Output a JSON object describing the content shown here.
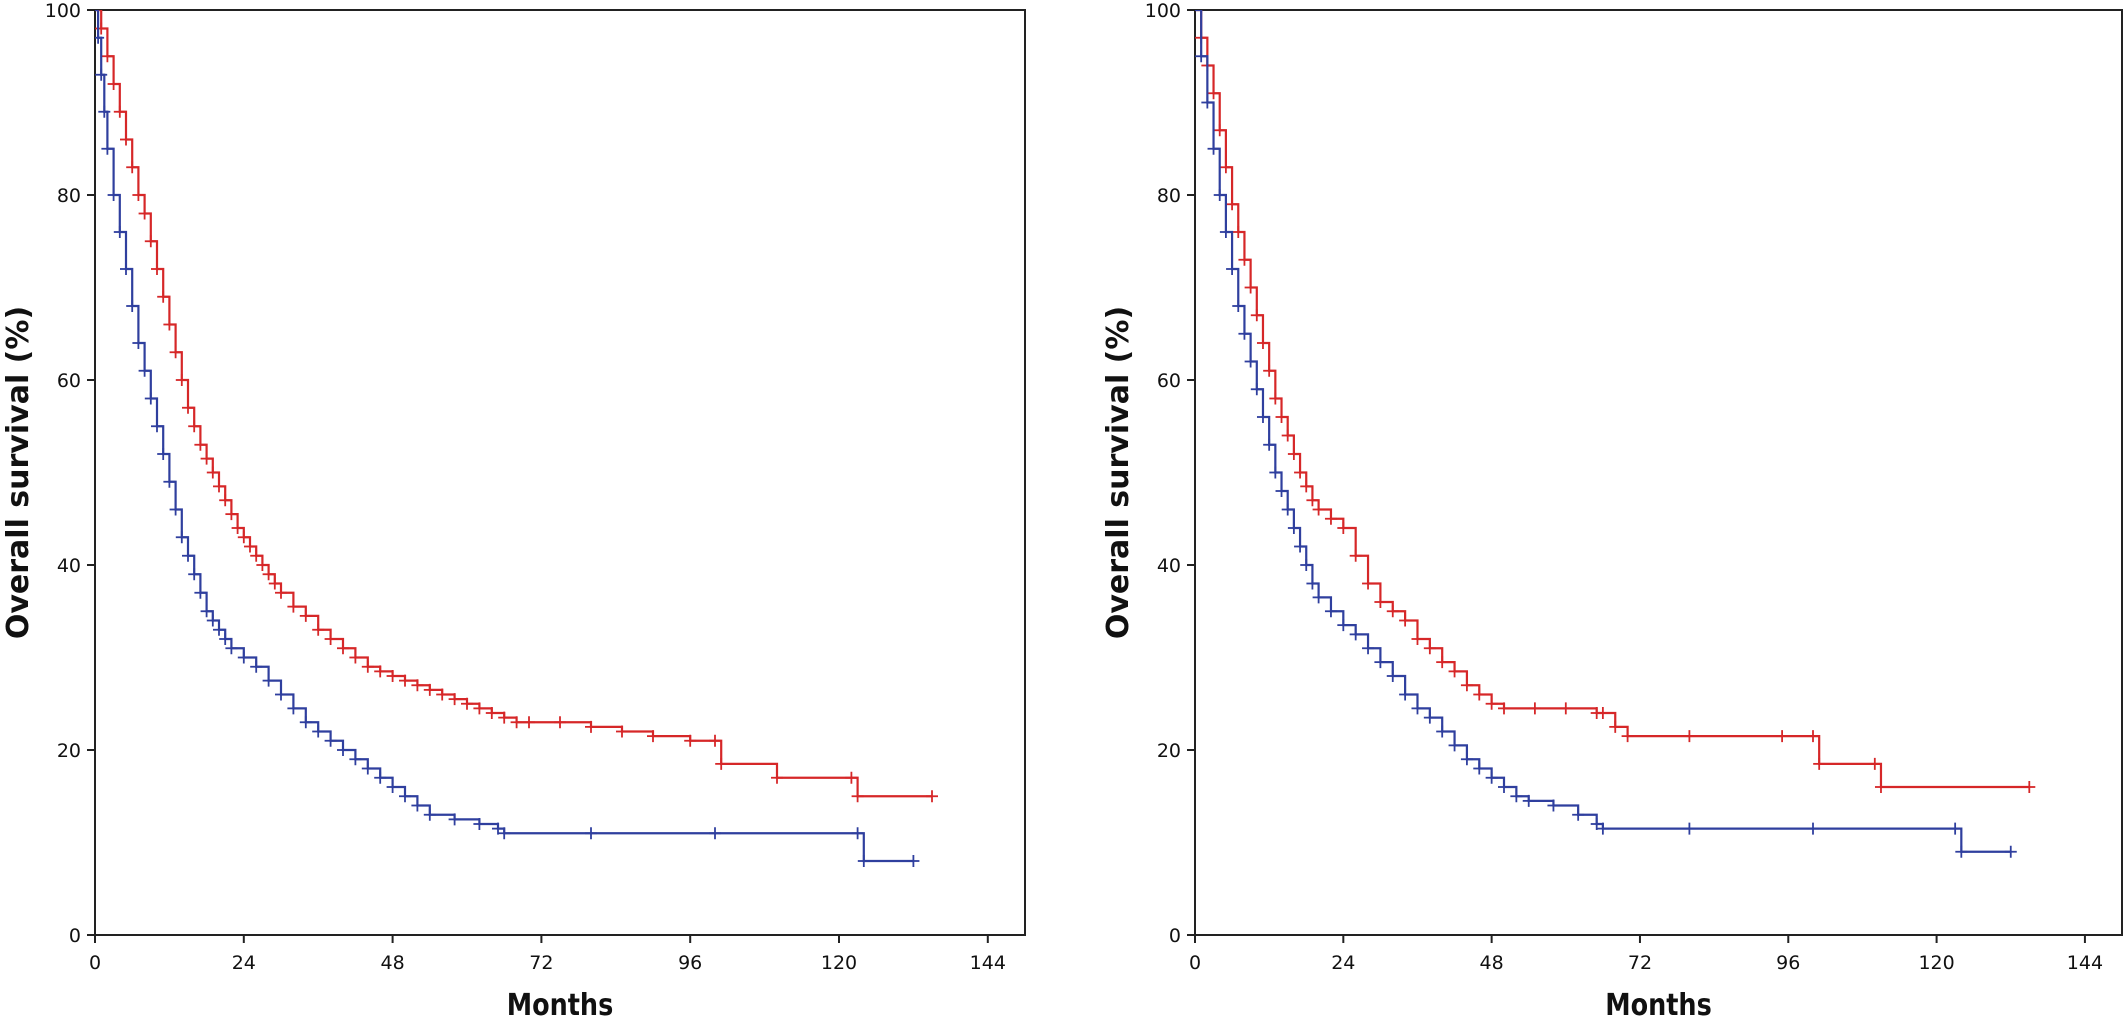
{
  "chart_data": [
    {
      "type": "line",
      "xlabel": "Months",
      "ylabel": "Overall survival (%)",
      "xlim": [
        0,
        150
      ],
      "ylim": [
        0,
        100
      ],
      "xticks": [
        0,
        24,
        48,
        72,
        96,
        120,
        144
      ],
      "yticks": [
        0,
        20,
        40,
        60,
        80,
        100
      ],
      "grid": false,
      "series": [
        {
          "color": "#d62728",
          "x": [
            0,
            1,
            2,
            3,
            4,
            5,
            6,
            7,
            8,
            9,
            10,
            11,
            12,
            13,
            14,
            15,
            16,
            17,
            18,
            19,
            20,
            21,
            22,
            23,
            24,
            25,
            26,
            27,
            28,
            29,
            30,
            32,
            34,
            36,
            38,
            40,
            42,
            44,
            46,
            48,
            50,
            52,
            54,
            56,
            58,
            60,
            62,
            64,
            66,
            68,
            70,
            75,
            80,
            85,
            90,
            96,
            100,
            101,
            110,
            122,
            123,
            135
          ],
          "values": [
            100,
            98,
            95,
            92,
            89,
            86,
            83,
            80,
            78,
            75,
            72,
            69,
            66,
            63,
            60,
            57,
            55,
            53,
            51.5,
            50,
            48.5,
            47,
            45.5,
            44,
            43,
            42,
            41,
            40,
            39,
            38,
            37,
            35.5,
            34.5,
            33,
            32,
            31,
            30,
            29,
            28.5,
            28,
            27.5,
            27,
            26.5,
            26,
            25.5,
            25,
            24.5,
            24,
            23.5,
            23,
            23,
            23,
            22.5,
            22,
            21.5,
            21,
            21,
            18.5,
            17,
            17,
            15,
            15
          ]
        },
        {
          "color": "#2f3f9e",
          "x": [
            0,
            0.5,
            1,
            1.5,
            2,
            3,
            4,
            5,
            6,
            7,
            8,
            9,
            10,
            11,
            12,
            13,
            14,
            15,
            16,
            17,
            18,
            19,
            20,
            21,
            22,
            24,
            26,
            28,
            30,
            32,
            34,
            36,
            38,
            40,
            42,
            44,
            46,
            48,
            50,
            52,
            54,
            58,
            62,
            65,
            66,
            80,
            100,
            123,
            124,
            132
          ],
          "values": [
            100,
            97,
            93,
            89,
            85,
            80,
            76,
            72,
            68,
            64,
            61,
            58,
            55,
            52,
            49,
            46,
            43,
            41,
            39,
            37,
            35,
            34,
            33,
            32,
            31,
            30,
            29,
            27.5,
            26,
            24.5,
            23,
            22,
            21,
            20,
            19,
            18,
            17,
            16,
            15,
            14,
            13,
            12.5,
            12,
            11.5,
            11,
            11,
            11,
            11,
            8,
            8
          ]
        }
      ]
    },
    {
      "type": "line",
      "xlabel": "Months",
      "ylabel": "Overall survival (%)",
      "xlim": [
        0,
        150
      ],
      "ylim": [
        0,
        100
      ],
      "xticks": [
        0,
        24,
        48,
        72,
        96,
        120,
        144
      ],
      "yticks": [
        0,
        20,
        40,
        60,
        80,
        100
      ],
      "grid": false,
      "series": [
        {
          "color": "#d62728",
          "x": [
            0,
            1,
            2,
            3,
            4,
            5,
            6,
            7,
            8,
            9,
            10,
            11,
            12,
            13,
            14,
            15,
            16,
            17,
            18,
            19,
            20,
            22,
            24,
            26,
            28,
            30,
            32,
            34,
            36,
            38,
            40,
            42,
            44,
            46,
            48,
            50,
            55,
            60,
            65,
            66,
            68,
            70,
            80,
            95,
            100,
            101,
            110,
            111,
            135
          ],
          "values": [
            100,
            97,
            94,
            91,
            87,
            83,
            79,
            76,
            73,
            70,
            67,
            64,
            61,
            58,
            56,
            54,
            52,
            50,
            48.5,
            47,
            46,
            45,
            44,
            41,
            38,
            36,
            35,
            34,
            32,
            31,
            29.5,
            28.5,
            27,
            26,
            25,
            24.5,
            24.5,
            24.5,
            24,
            24,
            22.5,
            21.5,
            21.5,
            21.5,
            21.5,
            18.5,
            18.5,
            16,
            16
          ]
        },
        {
          "color": "#2f3f9e",
          "x": [
            0,
            1,
            2,
            3,
            4,
            5,
            6,
            7,
            8,
            9,
            10,
            11,
            12,
            13,
            14,
            15,
            16,
            17,
            18,
            19,
            20,
            22,
            24,
            26,
            28,
            30,
            32,
            34,
            36,
            38,
            40,
            42,
            44,
            46,
            48,
            50,
            52,
            54,
            58,
            62,
            65,
            66,
            80,
            100,
            123,
            124,
            132
          ],
          "values": [
            100,
            95,
            90,
            85,
            80,
            76,
            72,
            68,
            65,
            62,
            59,
            56,
            53,
            50,
            48,
            46,
            44,
            42,
            40,
            38,
            36.5,
            35,
            33.5,
            32.5,
            31,
            29.5,
            28,
            26,
            24.5,
            23.5,
            22,
            20.5,
            19,
            18,
            17,
            16,
            15,
            14.5,
            14,
            13,
            12,
            11.5,
            11.5,
            11.5,
            11.5,
            9,
            9
          ]
        }
      ]
    }
  ]
}
